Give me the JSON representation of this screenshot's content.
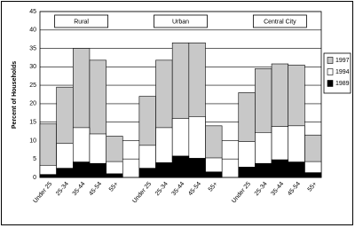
{
  "chart_data": {
    "type": "overlapping-bar",
    "y_label": "Percent of Households",
    "groups": [
      "Rural",
      "Urban",
      "Central City"
    ],
    "categories": [
      "Under 25",
      "25-34",
      "35-44",
      "45-54",
      "55+",
      "Under 25",
      "25-34",
      "35-44",
      "45-54",
      "55+",
      "Under 25",
      "25-34",
      "35-44",
      "45-54",
      "55+"
    ],
    "series": [
      {
        "name": "1997",
        "color": "#c8c8c8",
        "values": [
          14.5,
          24.5,
          35,
          31.8,
          11.2,
          22,
          31.8,
          36.5,
          36.5,
          14,
          23,
          29.5,
          30.8,
          30.5,
          11.5
        ]
      },
      {
        "name": "1994",
        "color": "#ffffff",
        "values": [
          3.3,
          9.2,
          13.5,
          11.8,
          4.3,
          8.7,
          13.5,
          16,
          16.5,
          5.3,
          9.7,
          12.2,
          13.8,
          14,
          4.3
        ]
      },
      {
        "name": "1989",
        "color": "#000000",
        "values": [
          0.8,
          2.5,
          4.2,
          3.8,
          1.0,
          2.5,
          4.0,
          5.8,
          5.2,
          1.5,
          2.8,
          3.8,
          4.8,
          4.2,
          1.3
        ]
      }
    ],
    "ylim": [
      0,
      45
    ],
    "yticks": [
      0,
      5,
      10,
      15,
      20,
      25,
      30,
      35,
      40,
      45
    ],
    "grid": true
  }
}
